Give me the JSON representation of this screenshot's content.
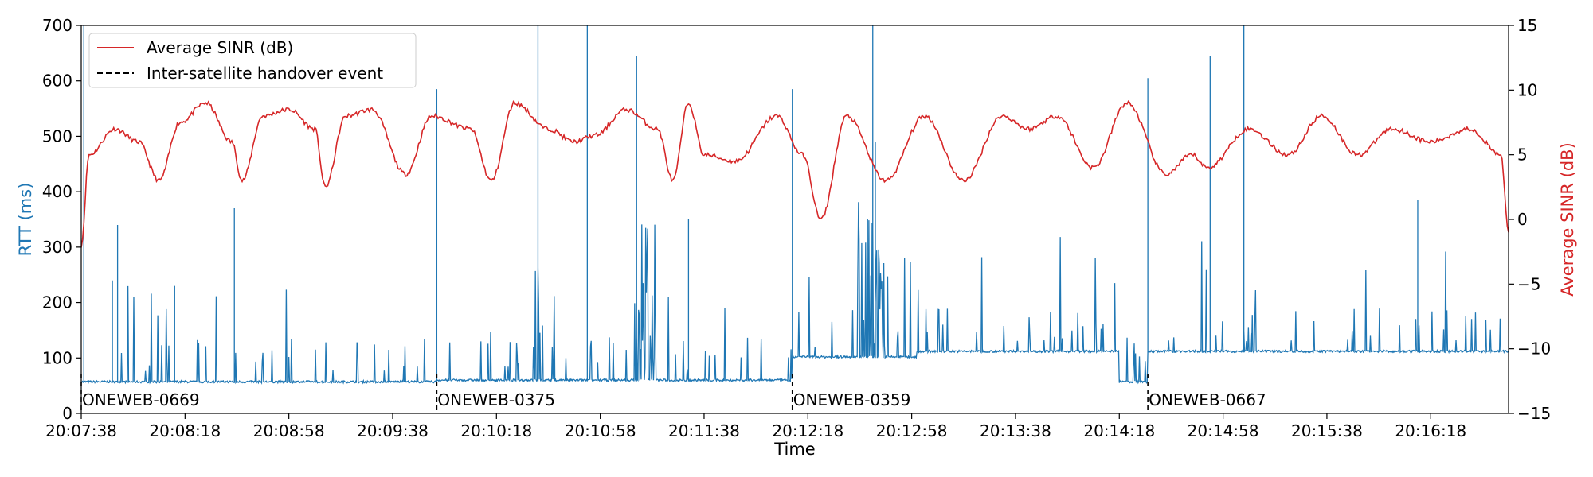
{
  "chart_data": {
    "type": "line",
    "xlabel": "Time",
    "ylabel_left": "RTT (ms)",
    "ylabel_right": "Average SINR (dB)",
    "x_ticks": [
      "20:07:38",
      "20:08:18",
      "20:08:58",
      "20:09:38",
      "20:10:18",
      "20:10:58",
      "20:11:38",
      "20:12:18",
      "20:12:58",
      "20:13:38",
      "20:14:18",
      "20:14:58",
      "20:15:38",
      "20:16:18"
    ],
    "x_range_seconds_from_first_tick": [
      0,
      550
    ],
    "tick_step_seconds": 40,
    "ylim_left": [
      0,
      700
    ],
    "yticks_left": [
      0,
      100,
      200,
      300,
      400,
      500,
      600,
      700
    ],
    "ylim_right": [
      -15,
      15
    ],
    "yticks_right": [
      -15,
      -10,
      -5,
      0,
      5,
      10,
      15
    ],
    "grid": false,
    "legend": {
      "placement": "upper-left",
      "entries": [
        "Average SINR (dB)",
        "Inter-satellite handover event"
      ]
    },
    "colors": {
      "rtt": "#1f77b4",
      "sinr": "#d62728",
      "handover": "#000000"
    },
    "handover_events": [
      {
        "time": "20:07:38",
        "satellite": "ONEWEB-0669"
      },
      {
        "time": "20:09:55",
        "satellite": "ONEWEB-0375"
      },
      {
        "time": "20:12:12",
        "satellite": "ONEWEB-0359"
      },
      {
        "time": "20:14:29",
        "satellite": "ONEWEB-0667"
      }
    ],
    "series": [
      {
        "name": "Average SINR (dB)",
        "axis": "right",
        "sample_points": [
          [
            0,
            -2
          ],
          [
            3,
            5
          ],
          [
            13,
            7
          ],
          [
            22,
            6
          ],
          [
            30,
            3
          ],
          [
            38,
            7.5
          ],
          [
            48,
            9
          ],
          [
            58,
            6
          ],
          [
            62,
            3
          ],
          [
            70,
            8
          ],
          [
            80,
            8.5
          ],
          [
            90,
            7
          ],
          [
            94,
            2.5
          ],
          [
            102,
            8
          ],
          [
            112,
            8.5
          ],
          [
            125,
            3.5
          ],
          [
            135,
            8
          ],
          [
            150,
            7
          ],
          [
            158,
            3
          ],
          [
            167,
            9
          ],
          [
            180,
            7
          ],
          [
            190,
            6
          ],
          [
            198,
            6.5
          ],
          [
            210,
            8.5
          ],
          [
            222,
            7
          ],
          [
            228,
            3
          ],
          [
            234,
            9
          ],
          [
            240,
            5
          ],
          [
            252,
            4.5
          ],
          [
            268,
            8
          ],
          [
            278,
            5
          ],
          [
            285,
            0
          ],
          [
            295,
            8
          ],
          [
            310,
            3
          ],
          [
            325,
            8
          ],
          [
            340,
            3
          ],
          [
            355,
            8
          ],
          [
            365,
            7
          ],
          [
            376,
            8
          ],
          [
            390,
            4
          ],
          [
            403,
            9
          ],
          [
            418,
            3.5
          ],
          [
            428,
            5
          ],
          [
            434,
            4
          ],
          [
            450,
            7
          ],
          [
            465,
            5
          ],
          [
            478,
            8
          ],
          [
            492,
            5
          ],
          [
            505,
            7
          ],
          [
            520,
            6
          ],
          [
            535,
            7
          ],
          [
            547,
            5
          ],
          [
            550,
            -1
          ]
        ]
      },
      {
        "name": "RTT (ms)",
        "axis": "left",
        "baseline_segments": [
          [
            0,
            137,
            55
          ],
          [
            137,
            274,
            58
          ],
          [
            274,
            322,
            100
          ],
          [
            322,
            400,
            110
          ],
          [
            400,
            411,
            55
          ],
          [
            411,
            550,
            110
          ]
        ],
        "notable_spikes": [
          [
            1,
            700
          ],
          [
            12,
            240
          ],
          [
            14,
            340
          ],
          [
            36,
            230
          ],
          [
            59,
            370
          ],
          [
            137,
            585
          ],
          [
            176,
            700
          ],
          [
            195,
            700
          ],
          [
            214,
            645
          ],
          [
            234,
            350
          ],
          [
            274,
            585
          ],
          [
            303,
            350
          ],
          [
            306,
            490
          ],
          [
            305,
            700
          ],
          [
            411,
            605
          ],
          [
            435,
            645
          ],
          [
            448,
            700
          ],
          [
            515,
            385
          ]
        ]
      }
    ]
  }
}
